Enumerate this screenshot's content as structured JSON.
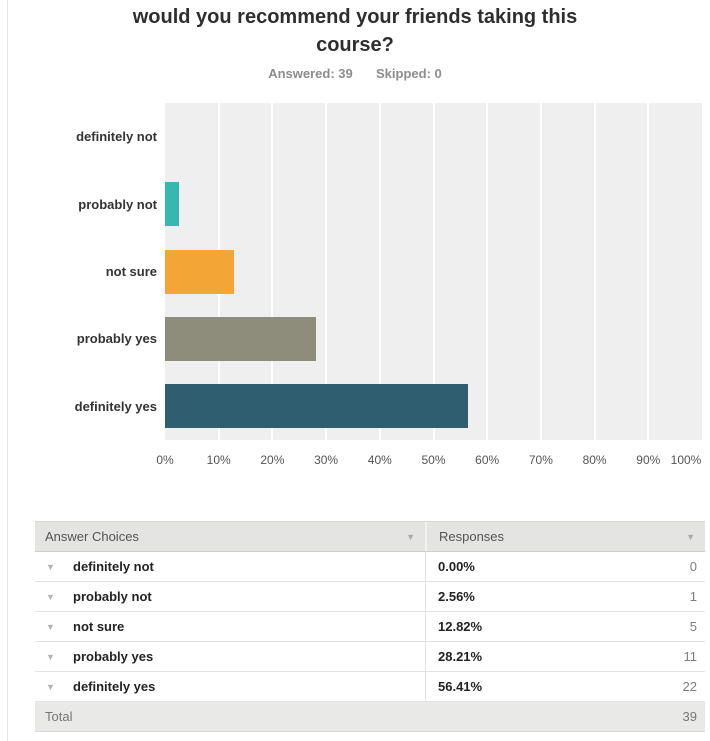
{
  "page": {
    "title": "would you recommend your friends taking this course?",
    "answered_label": "Answered:",
    "answered_value": "39",
    "skipped_label": "Skipped:",
    "skipped_value": "0"
  },
  "chart_data": {
    "type": "bar",
    "orientation": "horizontal",
    "title": "would you recommend your friends taking this course?",
    "categories": [
      "definitely not",
      "probably not",
      "not sure",
      "probably yes",
      "definitely yes"
    ],
    "values": [
      0,
      2.56,
      12.82,
      28.21,
      56.41
    ],
    "counts": [
      0,
      1,
      5,
      11,
      22
    ],
    "bar_colors": [
      null,
      "#35b8b2",
      "#f3a536",
      "#8e8d7c",
      "#2e5e6f"
    ],
    "x_ticks": [
      "0%",
      "10%",
      "20%",
      "30%",
      "40%",
      "50%",
      "60%",
      "70%",
      "80%",
      "90%",
      "100%"
    ],
    "xlim": [
      0,
      100
    ],
    "plot_bg": "#efefef",
    "grid": true,
    "legend": false,
    "xlabel": "",
    "ylabel": ""
  },
  "table": {
    "col_answer": "Answer Choices",
    "col_responses": "Responses",
    "rows": [
      {
        "choice": "definitely not",
        "percent": "0.00%",
        "count": "0"
      },
      {
        "choice": "probably not",
        "percent": "2.56%",
        "count": "1"
      },
      {
        "choice": "not sure",
        "percent": "12.82%",
        "count": "5"
      },
      {
        "choice": "probably yes",
        "percent": "28.21%",
        "count": "11"
      },
      {
        "choice": "definitely yes",
        "percent": "56.41%",
        "count": "22"
      }
    ],
    "total_label": "Total",
    "total_value": "39"
  }
}
